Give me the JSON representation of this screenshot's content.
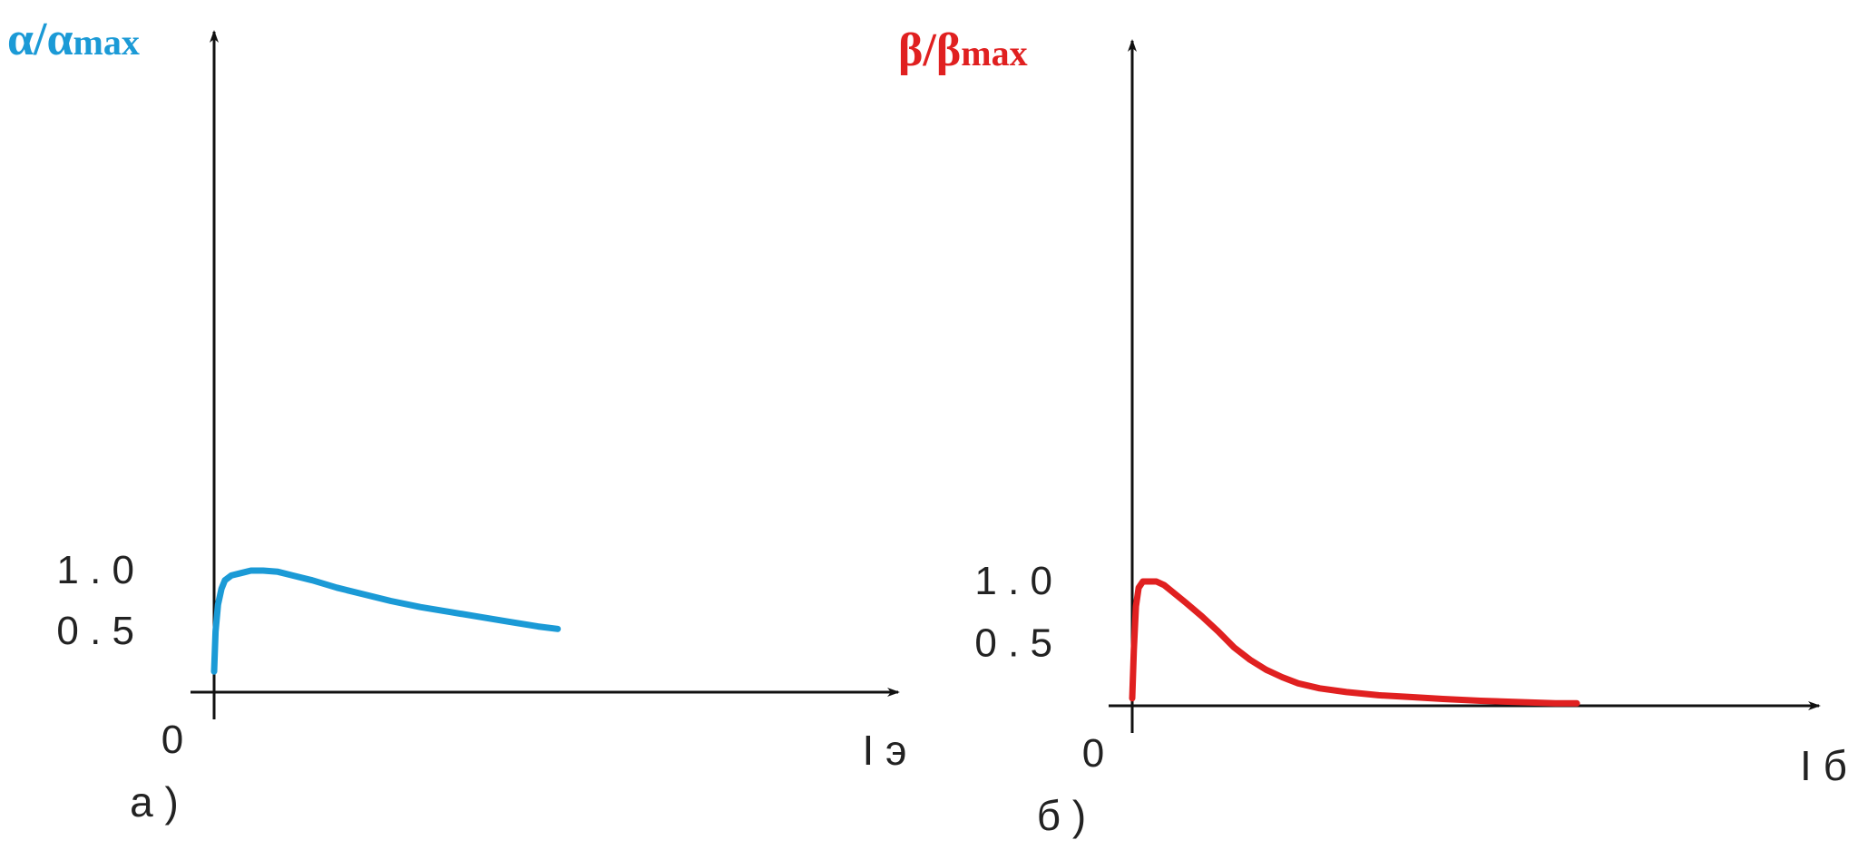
{
  "chart_data": [
    {
      "type": "line",
      "panel_label": "а )",
      "ylabel": "α/α",
      "ylabel_sub": "max",
      "xlabel": "I э",
      "origin_label": "0",
      "y_ticks": [
        "0 . 5",
        "1 . 0"
      ],
      "y_tick_values": [
        0.5,
        1.0
      ],
      "xlim": [
        0,
        1
      ],
      "ylim": [
        0,
        1.1
      ],
      "color": "#1b9ad6",
      "series": [
        {
          "x": [
            0.0,
            0.003,
            0.008,
            0.015,
            0.022,
            0.035,
            0.055,
            0.075,
            0.1,
            0.13,
            0.16,
            0.2,
            0.25,
            0.3,
            0.36,
            0.42,
            0.48,
            0.54,
            0.6,
            0.66,
            0.7
          ],
          "y": [
            0.17,
            0.5,
            0.72,
            0.85,
            0.92,
            0.96,
            0.98,
            1.0,
            1.0,
            0.99,
            0.96,
            0.92,
            0.86,
            0.81,
            0.75,
            0.7,
            0.66,
            0.62,
            0.58,
            0.54,
            0.52
          ]
        }
      ]
    },
    {
      "type": "line",
      "panel_label": "б )",
      "ylabel": "β/β",
      "ylabel_sub": "max",
      "xlabel": "I б",
      "origin_label": "0",
      "y_ticks": [
        "0 . 5",
        "1 . 0"
      ],
      "y_tick_values": [
        0.5,
        1.0
      ],
      "xlim": [
        0,
        1
      ],
      "ylim": [
        0,
        1.1
      ],
      "color": "#e02020",
      "series": [
        {
          "x": [
            0.0,
            0.003,
            0.007,
            0.012,
            0.02,
            0.03,
            0.045,
            0.06,
            0.08,
            0.1,
            0.13,
            0.16,
            0.19,
            0.22,
            0.25,
            0.28,
            0.31,
            0.35,
            0.4,
            0.46,
            0.52,
            0.58,
            0.65,
            0.72,
            0.79,
            0.83
          ],
          "y": [
            0.06,
            0.45,
            0.8,
            0.95,
            1.0,
            1.0,
            1.0,
            0.97,
            0.9,
            0.83,
            0.72,
            0.6,
            0.47,
            0.37,
            0.29,
            0.23,
            0.18,
            0.14,
            0.11,
            0.085,
            0.07,
            0.055,
            0.04,
            0.03,
            0.02,
            0.02
          ]
        }
      ]
    }
  ]
}
